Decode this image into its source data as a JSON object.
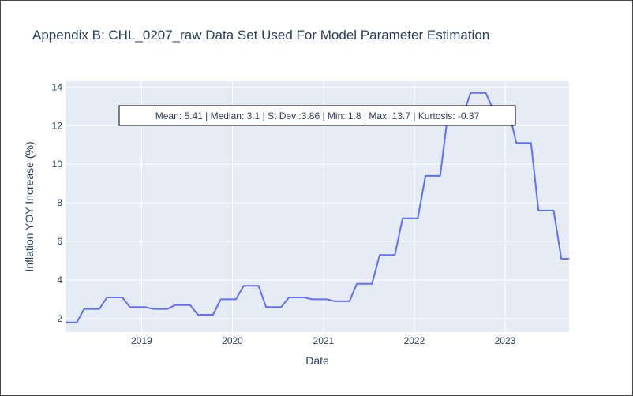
{
  "chart_data": {
    "type": "line",
    "title": "Appendix B: CHL_0207_raw Data Set Used For Model Parameter Estimation",
    "xlabel": "Date",
    "ylabel": "Inflation YOY Increase (%)",
    "annotation": "Mean: 5.41 | Median: 3.1 | St Dev :3.86 | Min: 1.8 | Max: 13.7 | Kurtosis: -0.37",
    "x_range": [
      "2018-03-01",
      "2023-09-15"
    ],
    "y_range": [
      1.3,
      14.3
    ],
    "x_ticks": [
      "2019",
      "2020",
      "2021",
      "2022",
      "2023"
    ],
    "y_ticks": [
      2,
      4,
      6,
      8,
      10,
      12,
      14
    ],
    "grid": true,
    "colors": {
      "line": "#636efa",
      "plot_bg": "#e5ecf6",
      "grid": "#ffffff",
      "text": "#2a3f5f"
    },
    "series": [
      {
        "x": [
          "2018-03-01",
          "2018-04-15",
          "2018-05-15",
          "2018-06-15",
          "2018-07-15",
          "2018-08-15",
          "2018-09-15",
          "2018-10-15",
          "2018-11-15",
          "2018-12-15",
          "2019-01-15",
          "2019-02-15",
          "2019-03-15",
          "2019-04-15",
          "2019-05-15",
          "2019-06-15",
          "2019-07-15",
          "2019-08-15",
          "2019-09-15",
          "2019-10-15",
          "2019-11-15",
          "2019-12-15",
          "2020-01-15",
          "2020-02-15",
          "2020-03-15",
          "2020-04-15",
          "2020-05-15",
          "2020-06-15",
          "2020-07-15",
          "2020-08-15",
          "2020-09-15",
          "2020-10-15",
          "2020-11-15",
          "2020-12-15",
          "2021-01-15",
          "2021-02-15",
          "2021-03-15",
          "2021-04-15",
          "2021-05-15",
          "2021-06-15",
          "2021-07-15",
          "2021-08-15",
          "2021-09-15",
          "2021-10-15",
          "2021-11-15",
          "2021-12-15",
          "2022-01-15",
          "2022-02-15",
          "2022-03-15",
          "2022-04-15",
          "2022-05-15",
          "2022-06-15",
          "2022-07-15",
          "2022-08-15",
          "2022-09-15",
          "2022-10-15",
          "2022-11-15",
          "2022-12-15",
          "2023-01-15",
          "2023-02-15",
          "2023-03-15",
          "2023-04-15",
          "2023-05-15",
          "2023-06-15",
          "2023-07-15",
          "2023-08-15",
          "2023-09-15"
        ],
        "y": [
          1.8,
          1.8,
          2.5,
          2.5,
          2.5,
          3.1,
          3.1,
          3.1,
          2.6,
          2.6,
          2.6,
          2.5,
          2.5,
          2.5,
          2.7,
          2.7,
          2.7,
          2.2,
          2.2,
          2.2,
          3.0,
          3.0,
          3.0,
          3.7,
          3.7,
          3.7,
          2.6,
          2.6,
          2.6,
          3.1,
          3.1,
          3.1,
          3.0,
          3.0,
          3.0,
          2.9,
          2.9,
          2.9,
          3.8,
          3.8,
          3.8,
          5.3,
          5.3,
          5.3,
          7.2,
          7.2,
          7.2,
          9.4,
          9.4,
          9.4,
          12.5,
          12.5,
          12.5,
          13.7,
          13.7,
          13.7,
          12.8,
          12.8,
          12.8,
          11.1,
          11.1,
          11.1,
          7.6,
          7.6,
          7.6,
          5.1,
          5.1
        ]
      }
    ]
  }
}
